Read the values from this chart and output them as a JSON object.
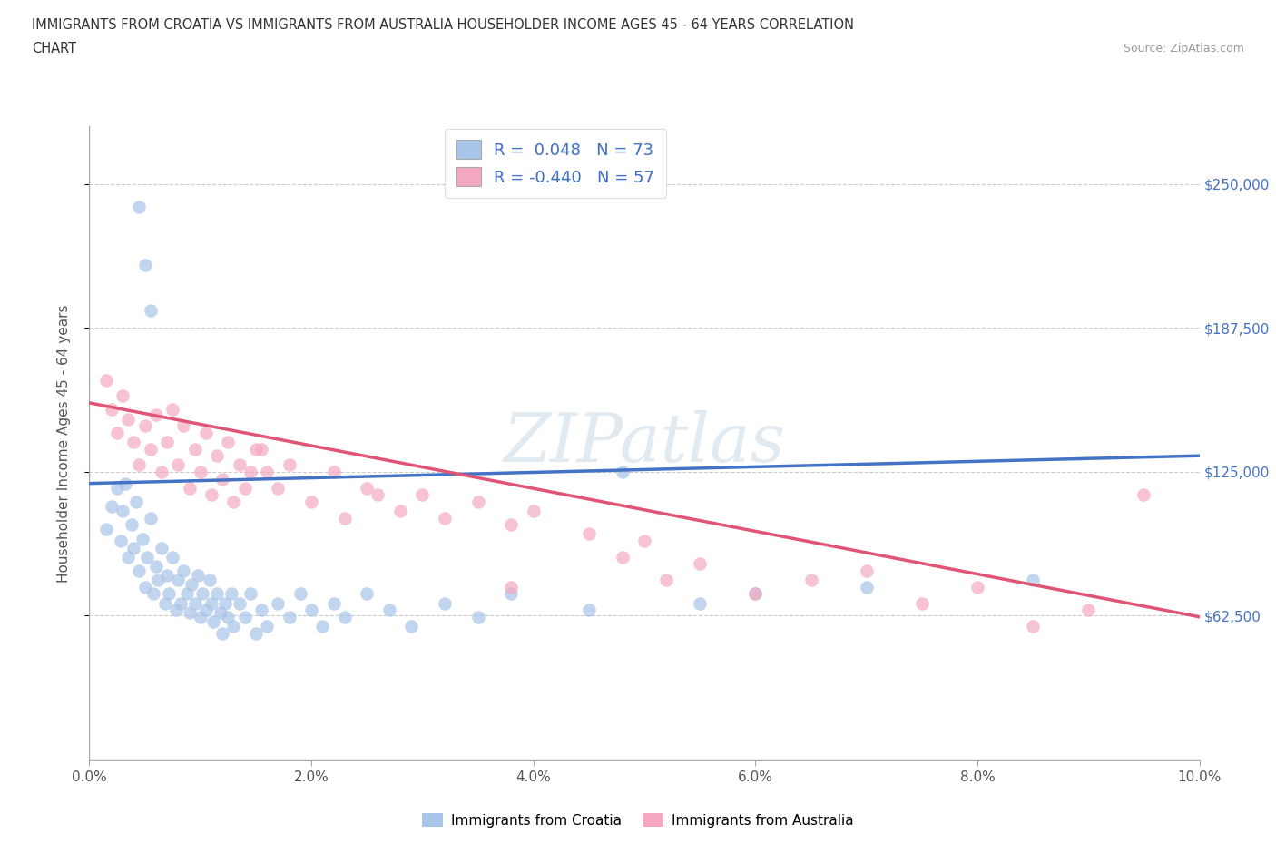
{
  "title_line1": "IMMIGRANTS FROM CROATIA VS IMMIGRANTS FROM AUSTRALIA HOUSEHOLDER INCOME AGES 45 - 64 YEARS CORRELATION",
  "title_line2": "CHART",
  "source_text": "Source: ZipAtlas.com",
  "watermark_zip": "ZIP",
  "watermark_atlas": "atlas",
  "ylabel": "Householder Income Ages 45 - 64 years",
  "xlim": [
    0.0,
    10.0
  ],
  "ylim": [
    0,
    275000
  ],
  "ytick_vals": [
    62500,
    125000,
    187500,
    250000
  ],
  "ytick_labels": [
    "$62,500",
    "$125,000",
    "$187,500",
    "$250,000"
  ],
  "xtick_vals": [
    0,
    2,
    4,
    6,
    8,
    10
  ],
  "xtick_labels": [
    "0.0%",
    "2.0%",
    "4.0%",
    "6.0%",
    "8.0%",
    "10.0%"
  ],
  "croatia_color": "#a8c4e8",
  "australia_color": "#f4a8c0",
  "croatia_line_color": "#4472c4",
  "australia_line_color": "#e05575",
  "R_croatia": 0.048,
  "N_croatia": 73,
  "R_australia": -0.44,
  "N_australia": 57,
  "grid_color": "#cccccc",
  "text_blue": "#4472c4",
  "croatia_scatter_x": [
    0.15,
    0.2,
    0.25,
    0.28,
    0.3,
    0.32,
    0.35,
    0.38,
    0.4,
    0.42,
    0.45,
    0.48,
    0.5,
    0.52,
    0.55,
    0.58,
    0.6,
    0.62,
    0.65,
    0.68,
    0.7,
    0.72,
    0.75,
    0.78,
    0.8,
    0.82,
    0.85,
    0.88,
    0.9,
    0.92,
    0.95,
    0.98,
    1.0,
    1.02,
    1.05,
    1.08,
    1.1,
    1.12,
    1.15,
    1.18,
    1.2,
    1.22,
    1.25,
    1.28,
    1.3,
    1.35,
    1.4,
    1.45,
    1.5,
    1.55,
    1.6,
    1.7,
    1.8,
    1.9,
    2.0,
    2.1,
    2.2,
    2.3,
    2.5,
    2.7,
    2.9,
    3.2,
    3.5,
    3.8,
    4.5,
    5.5,
    6.0,
    7.0,
    8.5,
    0.45,
    0.5,
    0.55,
    4.8
  ],
  "croatia_scatter_y": [
    100000,
    110000,
    118000,
    95000,
    108000,
    120000,
    88000,
    102000,
    92000,
    112000,
    82000,
    96000,
    75000,
    88000,
    105000,
    72000,
    84000,
    78000,
    92000,
    68000,
    80000,
    72000,
    88000,
    65000,
    78000,
    68000,
    82000,
    72000,
    64000,
    76000,
    68000,
    80000,
    62000,
    72000,
    65000,
    78000,
    68000,
    60000,
    72000,
    64000,
    55000,
    68000,
    62000,
    72000,
    58000,
    68000,
    62000,
    72000,
    55000,
    65000,
    58000,
    68000,
    62000,
    72000,
    65000,
    58000,
    68000,
    62000,
    72000,
    65000,
    58000,
    68000,
    62000,
    72000,
    65000,
    68000,
    72000,
    75000,
    78000,
    240000,
    215000,
    195000,
    125000
  ],
  "australia_scatter_x": [
    0.15,
    0.2,
    0.25,
    0.3,
    0.35,
    0.4,
    0.45,
    0.5,
    0.55,
    0.6,
    0.65,
    0.7,
    0.75,
    0.8,
    0.85,
    0.9,
    0.95,
    1.0,
    1.05,
    1.1,
    1.15,
    1.2,
    1.25,
    1.3,
    1.35,
    1.4,
    1.5,
    1.6,
    1.7,
    1.8,
    2.0,
    2.2,
    2.5,
    2.8,
    3.0,
    3.2,
    3.5,
    3.8,
    4.0,
    4.5,
    4.8,
    5.0,
    5.2,
    5.5,
    6.0,
    6.5,
    7.0,
    7.5,
    8.0,
    8.5,
    9.0,
    9.5,
    1.45,
    1.55,
    2.3,
    2.6,
    3.8
  ],
  "australia_scatter_y": [
    165000,
    152000,
    142000,
    158000,
    148000,
    138000,
    128000,
    145000,
    135000,
    150000,
    125000,
    138000,
    152000,
    128000,
    145000,
    118000,
    135000,
    125000,
    142000,
    115000,
    132000,
    122000,
    138000,
    112000,
    128000,
    118000,
    135000,
    125000,
    118000,
    128000,
    112000,
    125000,
    118000,
    108000,
    115000,
    105000,
    112000,
    102000,
    108000,
    98000,
    88000,
    95000,
    78000,
    85000,
    72000,
    78000,
    82000,
    68000,
    75000,
    58000,
    65000,
    115000,
    125000,
    135000,
    105000,
    115000,
    75000
  ]
}
